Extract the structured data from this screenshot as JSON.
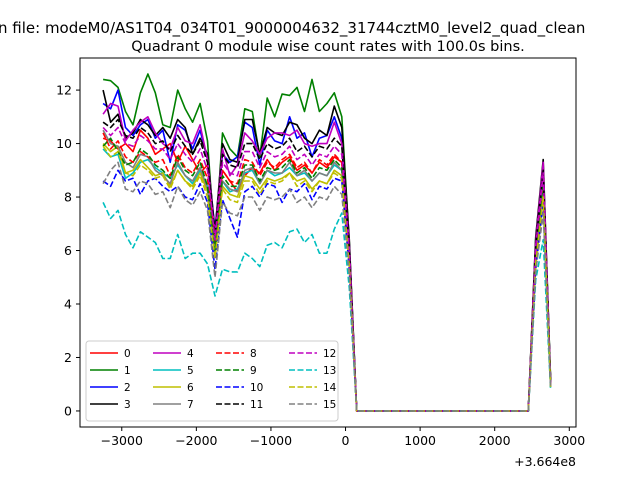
{
  "figure": {
    "suptitle": "n file: modeM0/AS1T04_034T01_9000004632_31744cztM0_level2_quad_clean"
  },
  "chart_data": {
    "type": "line",
    "title": "Quadrant 0 module wise count rates with 100.0s bins.",
    "xlabel": "",
    "ylabel": "",
    "x_offset_label": "+3.664e8",
    "xlim": [
      -3560,
      3090
    ],
    "ylim": [
      -0.6,
      13.2
    ],
    "xticks": [
      -3000,
      -2000,
      -1000,
      0,
      1000,
      2000,
      3000
    ],
    "xtick_labels": [
      "−3000",
      "−2000",
      "−1000",
      "0",
      "1000",
      "2000",
      "3000"
    ],
    "yticks": [
      0,
      2,
      4,
      6,
      8,
      10,
      12
    ],
    "ytick_labels": [
      "0",
      "2",
      "4",
      "6",
      "8",
      "10",
      "12"
    ],
    "grid": false,
    "legend": {
      "placement": "lower-left",
      "columns": 4
    },
    "x": [
      -3250,
      -3150,
      -3050,
      -2950,
      -2850,
      -2750,
      -2650,
      -2550,
      -2450,
      -2350,
      -2250,
      -2150,
      -2050,
      -1950,
      -1850,
      -1750,
      -1650,
      -1550,
      -1450,
      -1350,
      -1250,
      -1150,
      -1050,
      -950,
      -850,
      -750,
      -650,
      -550,
      -450,
      -350,
      -250,
      -150,
      -50,
      50,
      150,
      250,
      350,
      450,
      550,
      650,
      750,
      850,
      950,
      1050,
      1150,
      1250,
      1350,
      1450,
      1550,
      1650,
      1750,
      1850,
      1950,
      2050,
      2150,
      2250,
      2350,
      2450,
      2550,
      2650,
      2750
    ],
    "series": [
      {
        "name": "0",
        "color": "#ff0000",
        "dash": "solid",
        "values": [
          10.2,
          10.1,
          9.8,
          10.0,
          9.7,
          10.5,
          10.2,
          9.6,
          9.8,
          10.0,
          9.3,
          9.9,
          9.4,
          8.9,
          9.2,
          6.3,
          9.0,
          8.6,
          8.2,
          8.8,
          9.1,
          8.9,
          9.4,
          9.0,
          9.3,
          9.5,
          9.0,
          9.2,
          8.9,
          9.3,
          9.1,
          9.5,
          9.3,
          5.7,
          0.0,
          0.0,
          0.0,
          0.0,
          0.0,
          0.0,
          0.0,
          0.0,
          0.0,
          0.0,
          0.0,
          0.0,
          0.0,
          0.0,
          0.0,
          0.0,
          0.0,
          0.0,
          0.0,
          0.0,
          0.0,
          0.0,
          0.0,
          0.0,
          6.1,
          8.3,
          1.1
        ]
      },
      {
        "name": "1",
        "color": "#008000",
        "dash": "solid",
        "values": [
          12.4,
          12.35,
          12.1,
          11.2,
          10.7,
          11.9,
          12.6,
          11.9,
          10.7,
          10.6,
          12.0,
          11.3,
          10.8,
          11.5,
          10.1,
          6.1,
          10.4,
          9.8,
          9.5,
          11.3,
          11.2,
          9.5,
          11.7,
          11.0,
          11.85,
          11.8,
          12.1,
          11.2,
          12.4,
          11.2,
          11.5,
          11.9,
          11.0,
          6.3,
          0.0,
          0.0,
          0.0,
          0.0,
          0.0,
          0.0,
          0.0,
          0.0,
          0.0,
          0.0,
          0.0,
          0.0,
          0.0,
          0.0,
          0.0,
          0.0,
          0.0,
          0.0,
          0.0,
          0.0,
          0.0,
          0.0,
          0.0,
          0.0,
          6.4,
          9.0,
          1.2
        ]
      },
      {
        "name": "2",
        "color": "#0000ff",
        "dash": "solid",
        "values": [
          11.5,
          11.3,
          12.0,
          10.6,
          10.3,
          10.7,
          10.9,
          10.2,
          10.5,
          9.3,
          10.7,
          10.5,
          9.8,
          10.5,
          9.4,
          6.8,
          9.6,
          9.3,
          9.5,
          10.8,
          10.6,
          9.2,
          10.5,
          10.1,
          10.0,
          11.0,
          10.2,
          10.4,
          9.5,
          10.2,
          10.3,
          11.0,
          10.2,
          6.2,
          0.0,
          0.0,
          0.0,
          0.0,
          0.0,
          0.0,
          0.0,
          0.0,
          0.0,
          0.0,
          0.0,
          0.0,
          0.0,
          0.0,
          0.0,
          0.0,
          0.0,
          0.0,
          0.0,
          0.0,
          0.0,
          0.0,
          0.0,
          0.0,
          6.0,
          9.1,
          1.0
        ]
      },
      {
        "name": "3",
        "color": "#000000",
        "dash": "solid",
        "values": [
          12.0,
          10.8,
          11.1,
          10.2,
          10.4,
          10.9,
          10.7,
          10.3,
          10.6,
          10.2,
          10.9,
          10.6,
          9.6,
          10.2,
          9.6,
          6.7,
          10.0,
          9.4,
          9.3,
          10.9,
          10.9,
          9.6,
          10.6,
          10.4,
          10.3,
          10.8,
          10.7,
          10.2,
          10.0,
          10.5,
          10.3,
          11.4,
          10.6,
          6.4,
          0.0,
          0.0,
          0.0,
          0.0,
          0.0,
          0.0,
          0.0,
          0.0,
          0.0,
          0.0,
          0.0,
          0.0,
          0.0,
          0.0,
          0.0,
          0.0,
          0.0,
          0.0,
          0.0,
          0.0,
          0.0,
          0.0,
          0.0,
          0.0,
          6.5,
          9.4,
          1.1
        ]
      },
      {
        "name": "4",
        "color": "#bf00bf",
        "dash": "solid",
        "values": [
          11.1,
          11.5,
          11.4,
          10.1,
          10.5,
          10.8,
          11.0,
          10.4,
          10.0,
          9.8,
          10.6,
          10.1,
          10.0,
          10.7,
          9.4,
          6.6,
          9.8,
          8.8,
          9.2,
          10.4,
          10.1,
          9.6,
          10.2,
          10.4,
          10.4,
          10.3,
          10.5,
          10.0,
          9.9,
          10.0,
          10.0,
          10.8,
          10.0,
          6.2,
          0.0,
          0.0,
          0.0,
          0.0,
          0.0,
          0.0,
          0.0,
          0.0,
          0.0,
          0.0,
          0.0,
          0.0,
          0.0,
          0.0,
          0.0,
          0.0,
          0.0,
          0.0,
          0.0,
          0.0,
          0.0,
          0.0,
          0.0,
          0.0,
          6.3,
          9.3,
          1.0
        ]
      },
      {
        "name": "5",
        "color": "#00bfbf",
        "dash": "solid",
        "values": [
          9.8,
          9.5,
          9.6,
          8.7,
          8.9,
          9.3,
          9.4,
          9.1,
          8.9,
          8.7,
          9.2,
          8.8,
          8.5,
          9.0,
          8.4,
          6.0,
          8.6,
          8.2,
          8.3,
          8.9,
          9.0,
          8.5,
          9.0,
          8.8,
          8.9,
          9.1,
          8.8,
          8.9,
          8.6,
          8.9,
          8.8,
          9.2,
          9.0,
          5.6,
          0.0,
          0.0,
          0.0,
          0.0,
          0.0,
          0.0,
          0.0,
          0.0,
          0.0,
          0.0,
          0.0,
          0.0,
          0.0,
          0.0,
          0.0,
          0.0,
          0.0,
          0.0,
          0.0,
          0.0,
          0.0,
          0.0,
          0.0,
          0.0,
          5.5,
          8.2,
          0.9
        ]
      },
      {
        "name": "6",
        "color": "#bfbf00",
        "dash": "solid",
        "values": [
          10.0,
          9.7,
          9.9,
          8.9,
          9.0,
          9.4,
          9.1,
          8.8,
          8.9,
          8.4,
          9.0,
          8.6,
          8.4,
          8.9,
          8.2,
          5.8,
          8.4,
          8.1,
          8.0,
          8.8,
          8.7,
          8.3,
          8.7,
          8.6,
          8.7,
          8.9,
          8.6,
          8.7,
          8.3,
          8.6,
          8.5,
          9.0,
          8.8,
          5.5,
          0.0,
          0.0,
          0.0,
          0.0,
          0.0,
          0.0,
          0.0,
          0.0,
          0.0,
          0.0,
          0.0,
          0.0,
          0.0,
          0.0,
          0.0,
          0.0,
          0.0,
          0.0,
          0.0,
          0.0,
          0.0,
          0.0,
          0.0,
          0.0,
          5.4,
          8.0,
          0.9
        ]
      },
      {
        "name": "7",
        "color": "#808080",
        "dash": "solid",
        "values": [
          10.5,
          10.0,
          9.9,
          9.3,
          9.1,
          9.6,
          9.5,
          9.0,
          8.8,
          8.5,
          9.3,
          8.8,
          8.6,
          9.1,
          8.3,
          5.9,
          8.6,
          8.3,
          8.2,
          9.0,
          9.1,
          8.5,
          9.0,
          8.9,
          8.9,
          9.3,
          8.8,
          9.0,
          8.6,
          8.9,
          8.8,
          9.3,
          9.0,
          5.6,
          0.0,
          0.0,
          0.0,
          0.0,
          0.0,
          0.0,
          0.0,
          0.0,
          0.0,
          0.0,
          0.0,
          0.0,
          0.0,
          0.0,
          0.0,
          0.0,
          0.0,
          0.0,
          0.0,
          0.0,
          0.0,
          0.0,
          0.0,
          0.0,
          5.8,
          8.5,
          1.0
        ]
      },
      {
        "name": "8",
        "color": "#ff0000",
        "dash": "dashed",
        "values": [
          10.4,
          9.8,
          10.1,
          9.5,
          9.3,
          9.7,
          9.5,
          9.3,
          9.4,
          8.8,
          9.6,
          9.1,
          8.9,
          9.4,
          8.7,
          6.2,
          9.0,
          8.6,
          8.5,
          9.4,
          9.3,
          8.8,
          9.3,
          9.1,
          9.4,
          9.6,
          9.1,
          9.3,
          8.9,
          9.4,
          9.2,
          9.6,
          9.3,
          5.8,
          0.0,
          0.0,
          0.0,
          0.0,
          0.0,
          0.0,
          0.0,
          0.0,
          0.0,
          0.0,
          0.0,
          0.0,
          0.0,
          0.0,
          0.0,
          0.0,
          0.0,
          0.0,
          0.0,
          0.0,
          0.0,
          0.0,
          0.0,
          0.0,
          6.0,
          8.7,
          1.0
        ]
      },
      {
        "name": "9",
        "color": "#008000",
        "dash": "dashed",
        "values": [
          9.9,
          10.2,
          9.7,
          9.2,
          9.3,
          9.8,
          9.6,
          9.2,
          9.0,
          8.7,
          9.5,
          9.0,
          8.8,
          9.3,
          8.4,
          6.0,
          8.8,
          8.4,
          8.4,
          9.2,
          9.2,
          8.6,
          9.1,
          9.0,
          9.1,
          9.4,
          8.9,
          9.1,
          8.7,
          9.1,
          9.0,
          9.4,
          9.1,
          5.7,
          0.0,
          0.0,
          0.0,
          0.0,
          0.0,
          0.0,
          0.0,
          0.0,
          0.0,
          0.0,
          0.0,
          0.0,
          0.0,
          0.0,
          0.0,
          0.0,
          0.0,
          0.0,
          0.0,
          0.0,
          0.0,
          0.0,
          0.0,
          0.0,
          5.9,
          8.6,
          1.0
        ]
      },
      {
        "name": "10",
        "color": "#0000ff",
        "dash": "dashed",
        "values": [
          8.6,
          8.4,
          9.0,
          8.6,
          8.7,
          8.1,
          8.6,
          8.7,
          8.4,
          8.2,
          8.4,
          8.0,
          7.9,
          8.5,
          7.8,
          5.3,
          7.9,
          7.2,
          6.5,
          8.2,
          8.4,
          8.0,
          8.5,
          8.4,
          7.8,
          8.3,
          8.2,
          8.5,
          7.9,
          8.4,
          8.3,
          8.7,
          8.6,
          5.3,
          0.0,
          0.0,
          0.0,
          0.0,
          0.0,
          0.0,
          0.0,
          0.0,
          0.0,
          0.0,
          0.0,
          0.0,
          0.0,
          0.0,
          0.0,
          0.0,
          0.0,
          0.0,
          0.0,
          0.0,
          0.0,
          0.0,
          0.0,
          0.0,
          5.3,
          7.8,
          0.9
        ]
      },
      {
        "name": "11",
        "color": "#000000",
        "dash": "dashed",
        "values": [
          10.8,
          10.6,
          10.9,
          10.3,
          10.2,
          10.6,
          10.4,
          10.0,
          10.1,
          9.7,
          10.3,
          9.9,
          9.6,
          10.1,
          9.3,
          6.6,
          9.6,
          9.2,
          9.1,
          10.0,
          10.0,
          9.4,
          10.0,
          9.8,
          9.9,
          10.2,
          9.7,
          9.9,
          9.5,
          9.9,
          9.8,
          10.2,
          9.9,
          6.1,
          0.0,
          0.0,
          0.0,
          0.0,
          0.0,
          0.0,
          0.0,
          0.0,
          0.0,
          0.0,
          0.0,
          0.0,
          0.0,
          0.0,
          0.0,
          0.0,
          0.0,
          0.0,
          0.0,
          0.0,
          0.0,
          0.0,
          0.0,
          0.0,
          6.2,
          9.0,
          1.1
        ]
      },
      {
        "name": "12",
        "color": "#bf00bf",
        "dash": "dashed",
        "values": [
          10.6,
          10.3,
          10.6,
          10.0,
          9.9,
          10.3,
          10.1,
          9.8,
          9.8,
          9.4,
          10.0,
          9.6,
          9.3,
          9.8,
          9.0,
          6.4,
          9.3,
          8.9,
          8.8,
          9.7,
          9.7,
          9.1,
          9.7,
          9.5,
          9.6,
          9.9,
          9.4,
          9.6,
          9.2,
          9.6,
          9.5,
          9.9,
          9.6,
          5.9,
          0.0,
          0.0,
          0.0,
          0.0,
          0.0,
          0.0,
          0.0,
          0.0,
          0.0,
          0.0,
          0.0,
          0.0,
          0.0,
          0.0,
          0.0,
          0.0,
          0.0,
          0.0,
          0.0,
          0.0,
          0.0,
          0.0,
          0.0,
          0.0,
          6.1,
          8.9,
          1.0
        ]
      },
      {
        "name": "13",
        "color": "#00bfbf",
        "dash": "dashed",
        "values": [
          7.8,
          7.2,
          7.5,
          6.6,
          6.1,
          6.7,
          6.5,
          6.3,
          5.7,
          5.7,
          6.6,
          5.7,
          5.9,
          5.9,
          5.5,
          4.3,
          5.3,
          5.2,
          5.2,
          5.9,
          5.7,
          5.4,
          6.2,
          6.3,
          6.1,
          6.7,
          6.8,
          6.3,
          6.6,
          5.9,
          5.9,
          6.8,
          7.4,
          4.6,
          0.0,
          0.0,
          0.0,
          0.0,
          0.0,
          0.0,
          0.0,
          0.0,
          0.0,
          0.0,
          0.0,
          0.0,
          0.0,
          0.0,
          0.0,
          0.0,
          0.0,
          0.0,
          0.0,
          0.0,
          0.0,
          0.0,
          0.0,
          0.0,
          4.9,
          6.4,
          0.8
        ]
      },
      {
        "name": "14",
        "color": "#bfbf00",
        "dash": "dashed",
        "values": [
          9.9,
          9.5,
          9.7,
          8.9,
          8.8,
          9.2,
          9.0,
          8.7,
          8.8,
          8.3,
          9.0,
          8.6,
          8.3,
          8.8,
          8.0,
          5.7,
          8.3,
          7.9,
          7.8,
          8.6,
          8.6,
          8.1,
          8.6,
          8.5,
          8.6,
          8.9,
          8.4,
          8.6,
          8.2,
          8.6,
          8.5,
          8.9,
          8.7,
          5.4,
          0.0,
          0.0,
          0.0,
          0.0,
          0.0,
          0.0,
          0.0,
          0.0,
          0.0,
          0.0,
          0.0,
          0.0,
          0.0,
          0.0,
          0.0,
          0.0,
          0.0,
          0.0,
          0.0,
          0.0,
          0.0,
          0.0,
          0.0,
          0.0,
          5.5,
          8.0,
          0.9
        ]
      },
      {
        "name": "15",
        "color": "#808080",
        "dash": "dashed",
        "values": [
          8.5,
          9.0,
          9.3,
          8.3,
          8.2,
          8.6,
          8.5,
          8.1,
          8.2,
          7.6,
          8.4,
          7.9,
          7.7,
          8.2,
          7.5,
          5.0,
          7.8,
          7.4,
          7.3,
          8.0,
          8.0,
          7.5,
          8.0,
          7.9,
          8.0,
          8.3,
          7.8,
          8.0,
          7.6,
          8.0,
          7.9,
          8.4,
          8.1,
          5.1,
          0.0,
          0.0,
          0.0,
          0.0,
          0.0,
          0.0,
          0.0,
          0.0,
          0.0,
          0.0,
          0.0,
          0.0,
          0.0,
          0.0,
          0.0,
          0.0,
          0.0,
          0.0,
          0.0,
          0.0,
          0.0,
          0.0,
          0.0,
          0.0,
          5.2,
          7.4,
          0.9
        ]
      }
    ]
  }
}
